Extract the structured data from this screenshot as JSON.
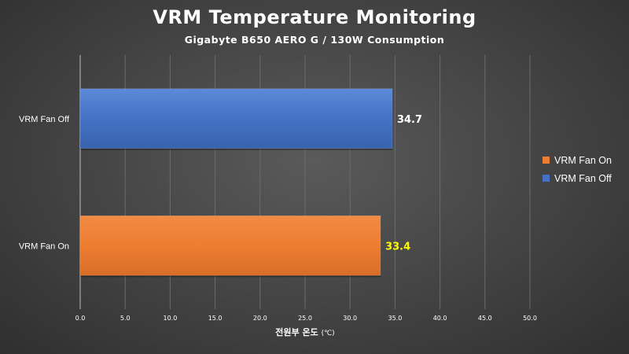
{
  "chart_data": {
    "type": "bar",
    "orientation": "horizontal",
    "title": "VRM Temperature Monitoring",
    "subtitle": "Gigabyte B650 AERO G / 130W Consumption",
    "xlabel": "전원부 온도",
    "xlabel_unit": "(℃)",
    "ylabel": "",
    "xlim": [
      0,
      50
    ],
    "x_ticks": [
      "0.0",
      "5.0",
      "10.0",
      "15.0",
      "20.0",
      "25.0",
      "30.0",
      "35.0",
      "40.0",
      "45.0",
      "50.0"
    ],
    "grid": true,
    "legend_position": "right",
    "categories": [
      "VRM Fan Off",
      "VRM Fan On"
    ],
    "series": [
      {
        "name": "VRM Fan Off",
        "values": [
          34.7,
          null
        ],
        "color": "#4472c4",
        "label_color": "#ffffff"
      },
      {
        "name": "VRM Fan On",
        "values": [
          null,
          33.4
        ],
        "color": "#ed7d31",
        "label_color": "#ffff00"
      }
    ],
    "legend_order": [
      "VRM Fan On",
      "VRM Fan Off"
    ]
  }
}
